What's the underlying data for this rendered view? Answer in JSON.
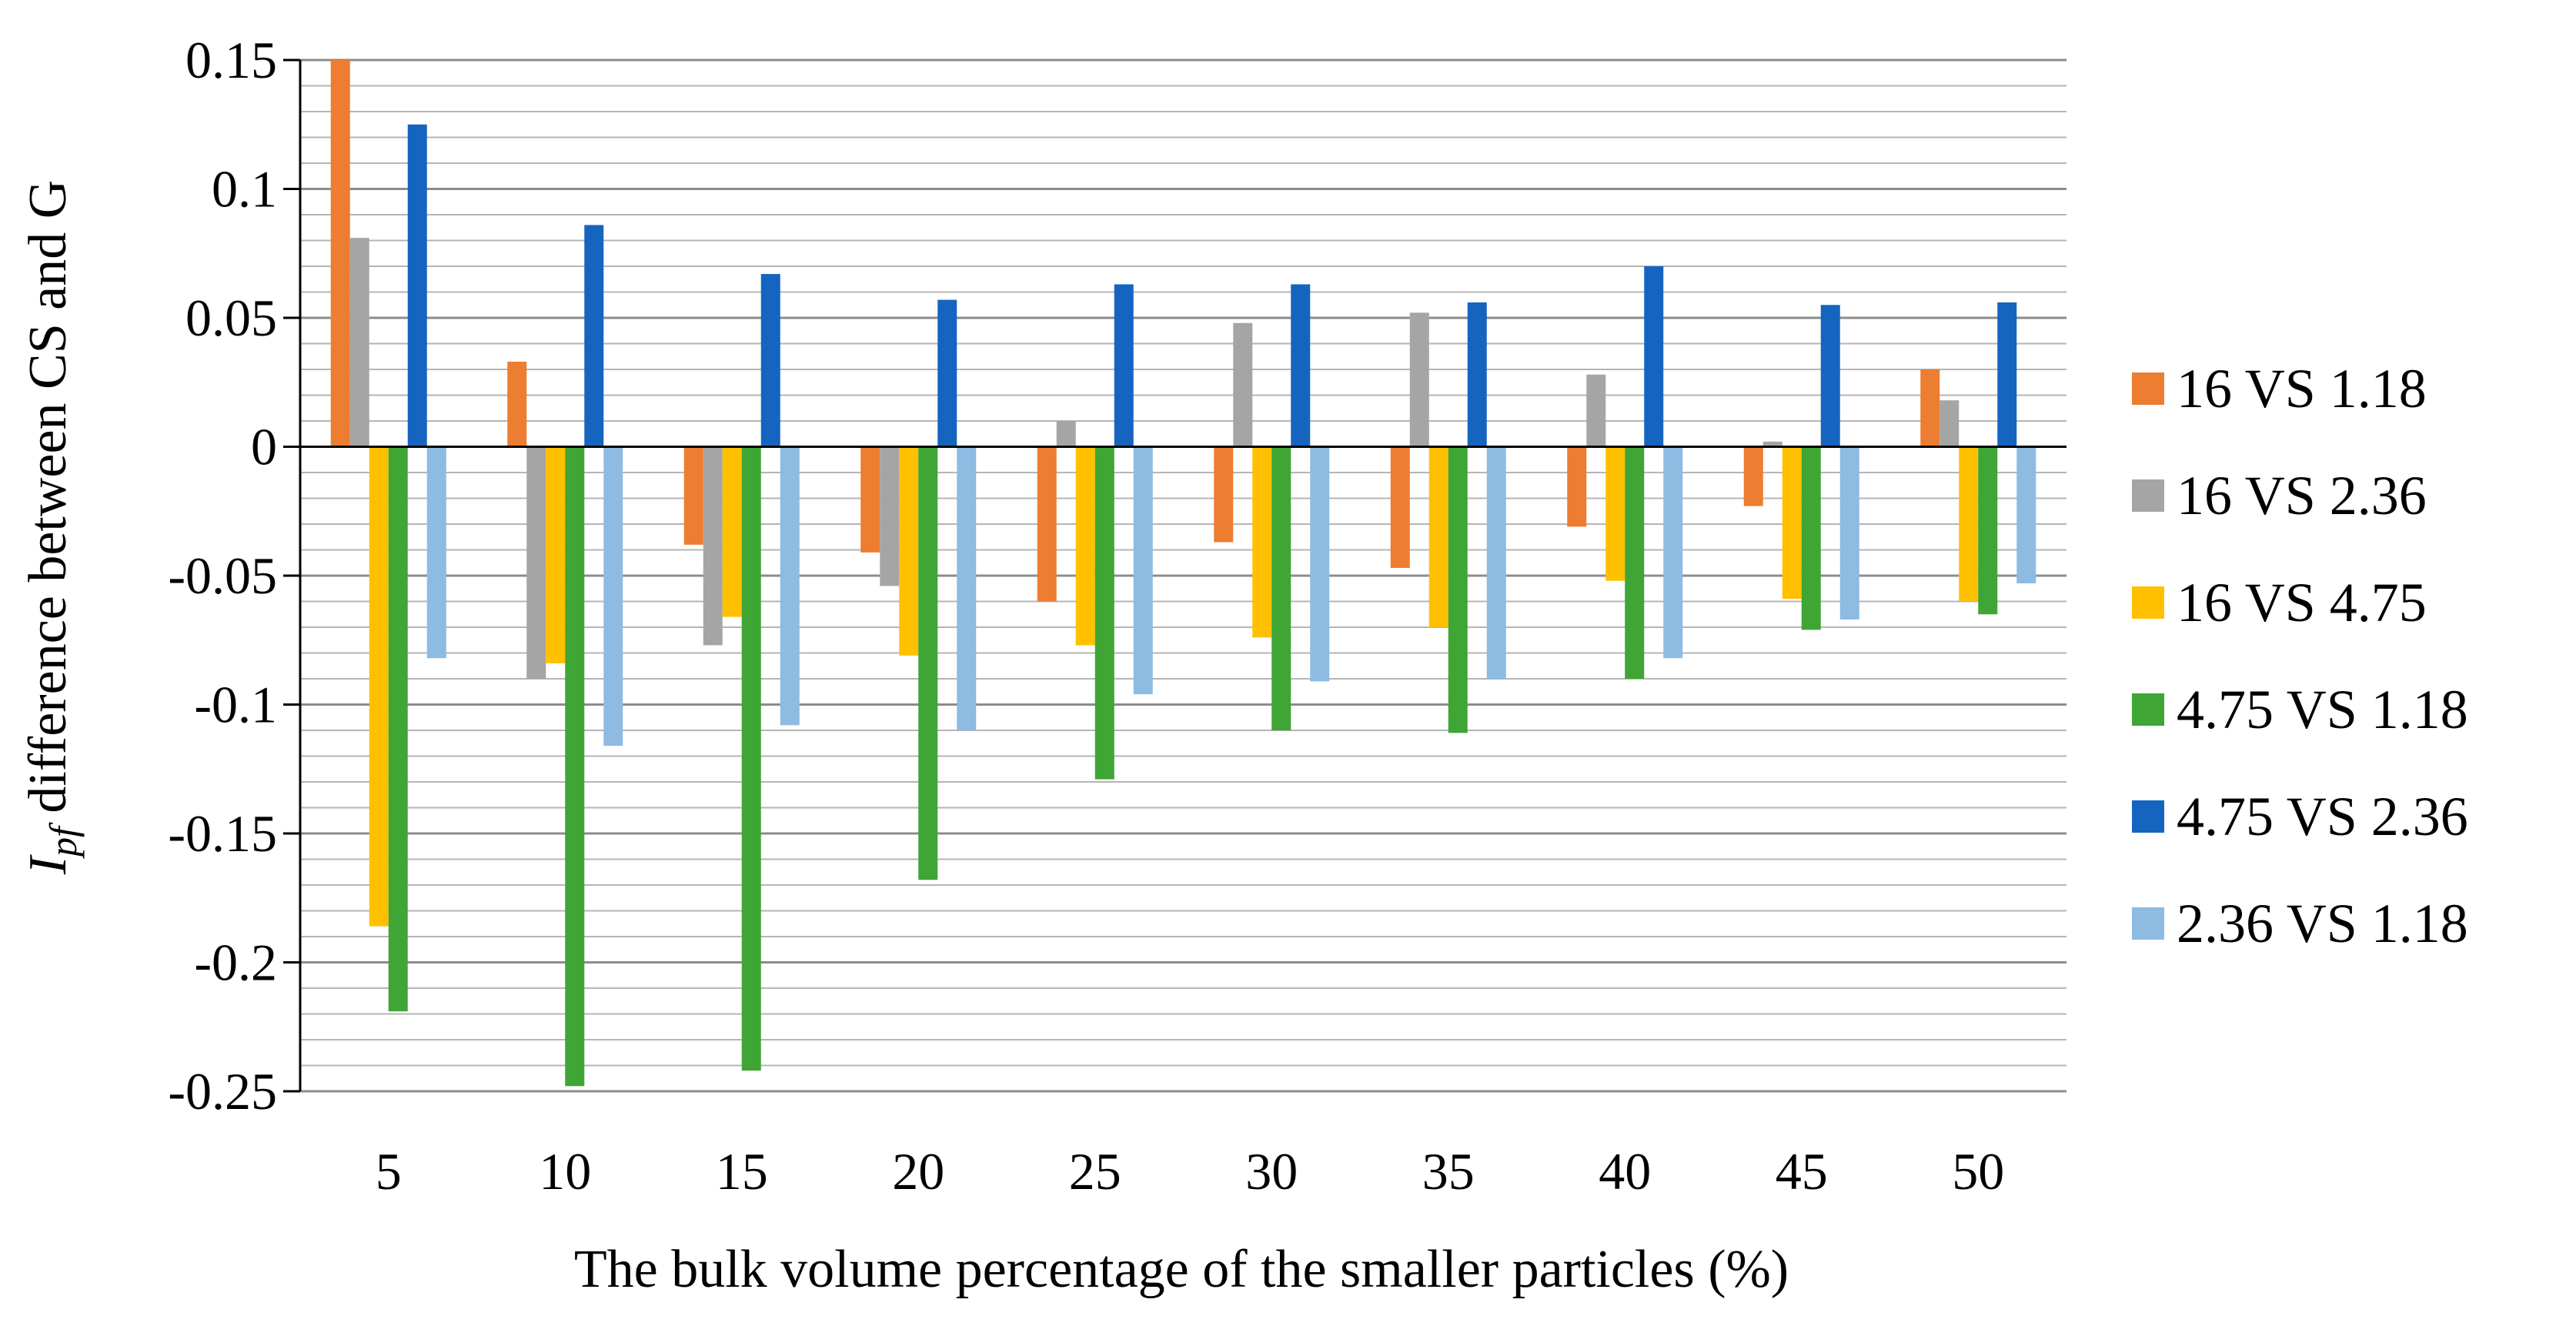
{
  "chart_data": {
    "type": "bar",
    "title": "",
    "xlabel": "The bulk volume percentage of the smaller particles (%)",
    "ylabel_symbol": "I",
    "ylabel_subscript": "pf",
    "ylabel_rest": " difference between CS and G",
    "ylim": [
      -0.25,
      0.15
    ],
    "major_ticks": [
      0.15,
      0.1,
      0.05,
      0,
      -0.05,
      -0.1,
      -0.15,
      -0.2,
      -0.25
    ],
    "major_tick_labels": [
      "0.15",
      "0.1",
      "0.05",
      "0",
      "-0.05",
      "-0.1",
      "-0.15",
      "-0.2",
      "-0.25"
    ],
    "minor_step": 0.01,
    "grid": true,
    "legend_position": "right",
    "categories": [
      "5",
      "10",
      "15",
      "20",
      "25",
      "30",
      "35",
      "40",
      "45",
      "50"
    ],
    "series": [
      {
        "name": "16 VS 1.18",
        "color": "#ED7D31",
        "values": [
          0.15,
          0.033,
          -0.038,
          -0.041,
          -0.06,
          -0.037,
          -0.047,
          -0.031,
          -0.023,
          0.03
        ]
      },
      {
        "name": "16 VS 2.36",
        "color": "#A5A5A5",
        "values": [
          0.081,
          -0.09,
          -0.077,
          -0.054,
          0.01,
          0.048,
          0.052,
          0.028,
          0.002,
          0.018
        ]
      },
      {
        "name": "16 VS 4.75",
        "color": "#FFC000",
        "values": [
          -0.186,
          -0.084,
          -0.066,
          -0.081,
          -0.077,
          -0.074,
          -0.07,
          -0.052,
          -0.059,
          -0.06
        ]
      },
      {
        "name": "4.75 VS 1.18",
        "color": "#3FA535",
        "values": [
          -0.219,
          -0.248,
          -0.242,
          -0.168,
          -0.129,
          -0.11,
          -0.111,
          -0.09,
          -0.071,
          -0.065
        ]
      },
      {
        "name": "4.75 VS 2.36",
        "color": "#1565C0",
        "values": [
          0.125,
          0.086,
          0.067,
          0.057,
          0.063,
          0.063,
          0.056,
          0.07,
          0.055,
          0.056
        ]
      },
      {
        "name": "2.36 VS 1.18",
        "color": "#8DBBE2",
        "values": [
          -0.082,
          -0.116,
          -0.108,
          -0.11,
          -0.096,
          -0.091,
          -0.09,
          -0.082,
          -0.067,
          -0.053
        ]
      }
    ]
  }
}
